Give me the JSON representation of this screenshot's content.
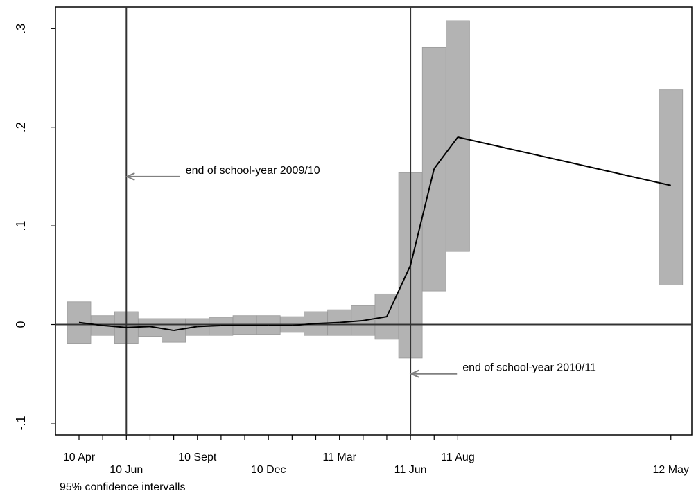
{
  "chart_data": {
    "type": "line",
    "note": "95% confidence intervalls",
    "x_tick_labels": [
      {
        "month": 0,
        "label": "10 Apr",
        "row": 0
      },
      {
        "month": 2,
        "label": "10 Jun",
        "row": 1
      },
      {
        "month": 5,
        "label": "10 Sept",
        "row": 0
      },
      {
        "month": 8,
        "label": "10 Dec",
        "row": 1
      },
      {
        "month": 11,
        "label": "11 Mar",
        "row": 0
      },
      {
        "month": 14,
        "label": "11 Jun",
        "row": 1
      },
      {
        "month": 16,
        "label": "11 Aug",
        "row": 0
      },
      {
        "month": 25,
        "label": "12 May",
        "row": 1
      }
    ],
    "minor_tick_months": [
      0,
      1,
      2,
      3,
      4,
      5,
      6,
      7,
      8,
      9,
      10,
      11,
      12,
      13,
      14,
      15,
      16,
      25
    ],
    "y_ticks": [
      {
        "value": -0.1,
        "label": "-.1"
      },
      {
        "value": 0,
        "label": "0"
      },
      {
        "value": 0.1,
        "label": ".1"
      },
      {
        "value": 0.2,
        "label": ".2"
      },
      {
        "value": 0.3,
        "label": ".3"
      }
    ],
    "xlim": [
      -1,
      26
    ],
    "ylim": [
      -0.112,
      0.322
    ],
    "series": [
      {
        "points": [
          {
            "x": 0,
            "date": "10 Apr",
            "y": 0.002,
            "lo": -0.019,
            "hi": 0.023
          },
          {
            "x": 1,
            "date": "10 May",
            "y": -0.001,
            "lo": -0.011,
            "hi": 0.009
          },
          {
            "x": 2,
            "date": "10 Jun",
            "y": -0.003,
            "lo": -0.019,
            "hi": 0.013
          },
          {
            "x": 3,
            "date": "10 Jul",
            "y": -0.002,
            "lo": -0.012,
            "hi": 0.006
          },
          {
            "x": 4,
            "date": "10 Aug",
            "y": -0.006,
            "lo": -0.018,
            "hi": 0.006
          },
          {
            "x": 5,
            "date": "10 Sept",
            "y": -0.002,
            "lo": -0.011,
            "hi": 0.006
          },
          {
            "x": 6,
            "date": "10 Oct",
            "y": -0.001,
            "lo": -0.011,
            "hi": 0.007
          },
          {
            "x": 7,
            "date": "10 Nov",
            "y": -0.001,
            "lo": -0.01,
            "hi": 0.009
          },
          {
            "x": 8,
            "date": "10 Dec",
            "y": -0.001,
            "lo": -0.01,
            "hi": 0.009
          },
          {
            "x": 9,
            "date": "11 Jan",
            "y": -0.001,
            "lo": -0.008,
            "hi": 0.008
          },
          {
            "x": 10,
            "date": "11 Feb",
            "y": 0.001,
            "lo": -0.011,
            "hi": 0.013
          },
          {
            "x": 11,
            "date": "11 Mar",
            "y": 0.002,
            "lo": -0.011,
            "hi": 0.015
          },
          {
            "x": 12,
            "date": "11 Apr",
            "y": 0.004,
            "lo": -0.011,
            "hi": 0.019
          },
          {
            "x": 13,
            "date": "11 May",
            "y": 0.008,
            "lo": -0.015,
            "hi": 0.031
          },
          {
            "x": 14,
            "date": "11 Jun",
            "y": 0.06,
            "lo": -0.034,
            "hi": 0.154
          },
          {
            "x": 15,
            "date": "11 Jul",
            "y": 0.158,
            "lo": 0.034,
            "hi": 0.281
          },
          {
            "x": 16,
            "date": "11 Aug",
            "y": 0.19,
            "lo": 0.074,
            "hi": 0.308
          },
          {
            "x": 25,
            "date": "12 May",
            "y": 0.141,
            "lo": 0.04,
            "hi": 0.238
          }
        ]
      }
    ],
    "reference_lines": {
      "vertical_months": [
        2,
        14
      ],
      "horizontal_value": 0
    },
    "annotations": [
      {
        "text": "end of school-year 2009/10",
        "arrow_to_month": 2,
        "arrow_to_value": 0.15,
        "text_at_month": 4.5
      },
      {
        "text": "end of school-year 2010/11",
        "arrow_to_month": 14,
        "arrow_to_value": -0.05,
        "text_at_month": 16.2
      }
    ],
    "grid": false,
    "colors": {
      "ci_band": "#b3b3b3",
      "ci_edge": "#9a9a9a",
      "line": "#000000",
      "reference": "#333333",
      "arrow": "#808080"
    }
  }
}
